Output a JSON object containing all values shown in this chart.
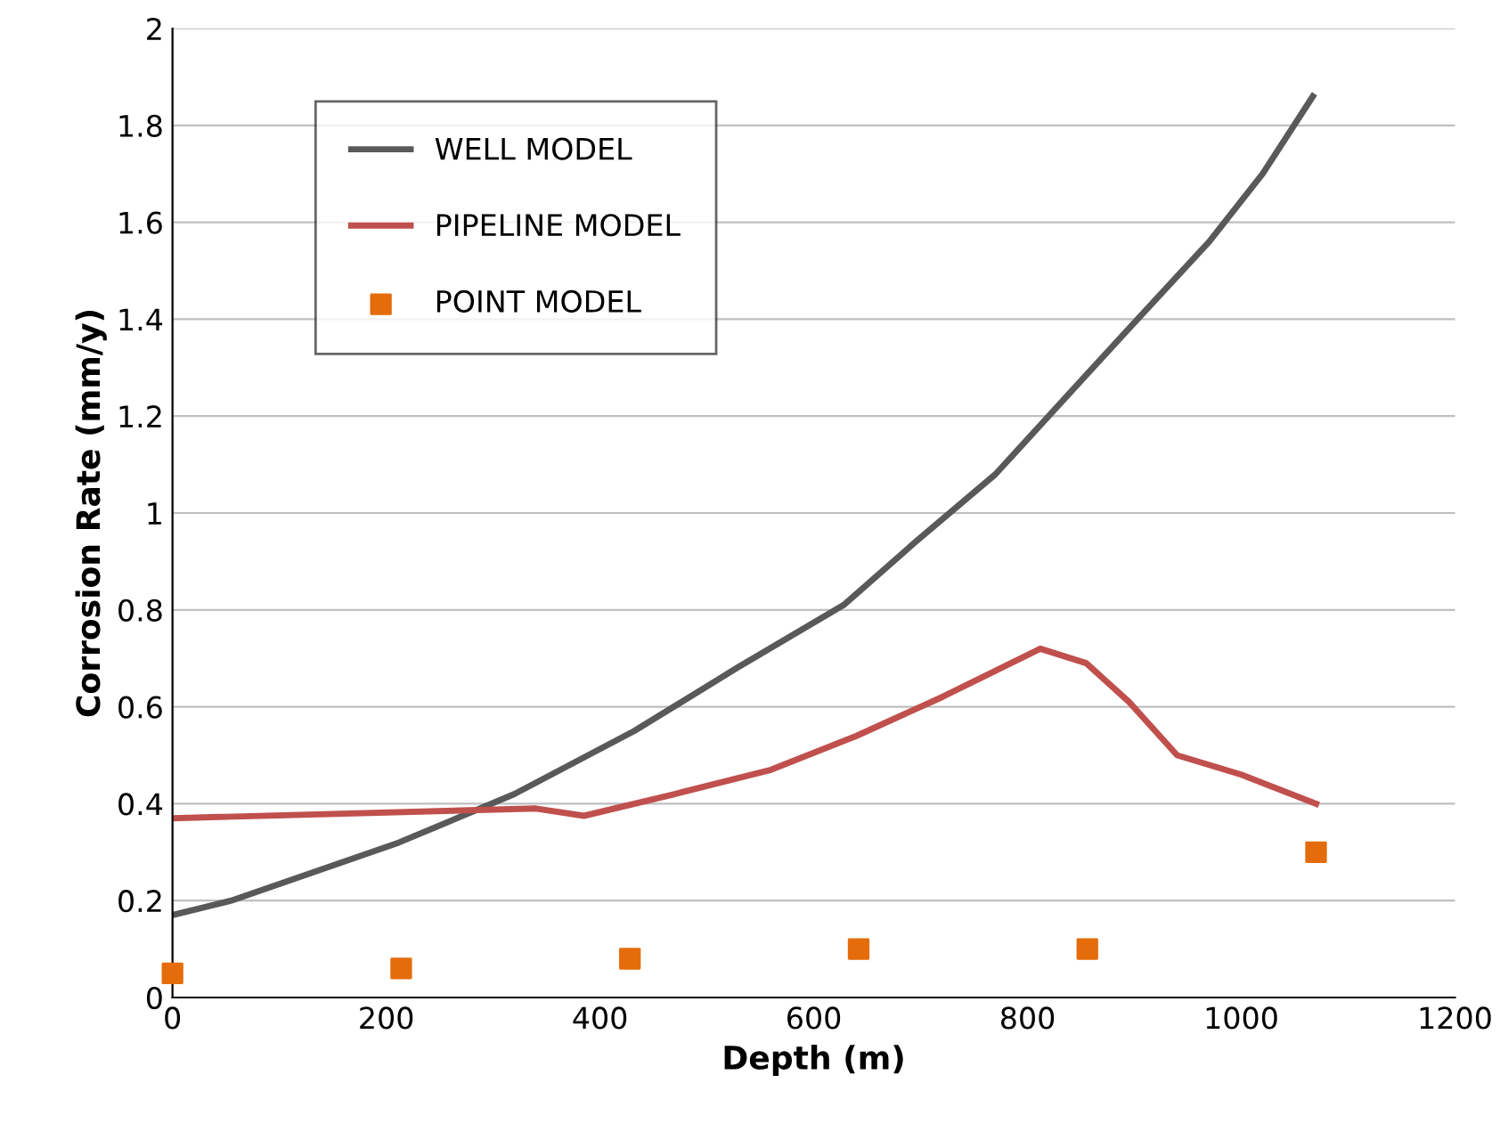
{
  "chart_data": {
    "type": "line",
    "xlabel": "Depth (m)",
    "ylabel": "Corrosion Rate (mm/y)",
    "xlim": [
      0,
      1200
    ],
    "xticks": [
      0,
      200,
      400,
      600,
      800,
      1000,
      1200
    ],
    "ylim": [
      0,
      2
    ],
    "yticks": [
      0,
      0.2,
      0.4,
      0.6,
      0.8,
      1,
      1.2,
      1.4,
      1.6,
      1.8,
      2
    ],
    "grid": "y",
    "legend": "top left",
    "series": [
      {
        "name": "WELL MODEL",
        "color": "#595959",
        "x": [
          0,
          55,
          212,
          320,
          432,
          528,
          628,
          695,
          770,
          853,
          903,
          970,
          1020,
          1067
        ],
        "values": [
          0.17,
          0.2,
          0.32,
          0.42,
          0.55,
          0.68,
          0.81,
          0.94,
          1.08,
          1.28,
          1.4,
          1.56,
          1.7,
          1.86
        ]
      },
      {
        "name": "PIPELINE MODEL",
        "color": "#c0504d",
        "x": [
          0,
          340,
          385,
          470,
          560,
          640,
          720,
          812,
          855,
          895,
          940,
          1000,
          1070
        ],
        "values": [
          0.37,
          0.39,
          0.375,
          0.42,
          0.47,
          0.54,
          0.62,
          0.72,
          0.69,
          0.61,
          0.5,
          0.46,
          0.4
        ]
      },
      {
        "name": "POINT MODEL",
        "color": "#e46c0a",
        "type": "scatter",
        "marker": "square",
        "x": [
          0,
          214,
          428,
          642,
          856,
          1070
        ],
        "values": [
          0.05,
          0.06,
          0.08,
          0.1,
          0.1,
          0.3
        ]
      }
    ]
  }
}
